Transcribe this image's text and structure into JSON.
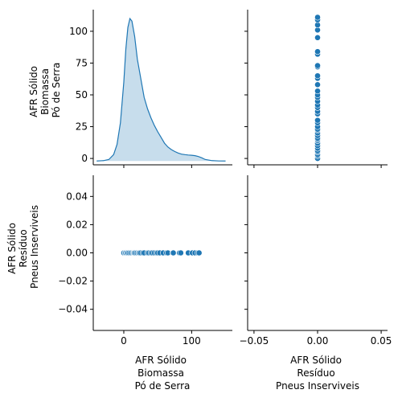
{
  "chart_data": {
    "type": "pairplot",
    "variables": [
      "AFR Sólido\nBiomassa\nPó de Serra",
      "AFR Sólido\nResíduo\nPneus Inserviveis"
    ],
    "var_labels": [
      [
        "AFR Sólido",
        "Biomassa",
        "Pó de Serra"
      ],
      [
        "AFR Sólido",
        "Resíduo",
        "Pneus Inserviveis"
      ]
    ],
    "color": "#1f77b4",
    "kde_fill_color": "#1f77b4",
    "biomassa_values": [
      0,
      2,
      3,
      5,
      6,
      8,
      10,
      12,
      14,
      15,
      16,
      18,
      20,
      22,
      23,
      25,
      28,
      30,
      35,
      37,
      40,
      42,
      45,
      48,
      50,
      53,
      58,
      63,
      65,
      72,
      73,
      82,
      84,
      95,
      101,
      105,
      109,
      111
    ],
    "pneus_values_constant": 0,
    "axes": {
      "biomassa": {
        "ticks": [
          0,
          25,
          50,
          75,
          100
        ],
        "tick_labels": [
          "0",
          "25",
          "50",
          "75",
          "100"
        ],
        "lim": [
          -5,
          117
        ]
      },
      "biomassa_x": {
        "ticks": [
          0,
          100
        ],
        "tick_labels": [
          "0",
          "100"
        ],
        "lim": [
          -45,
          160
        ]
      },
      "pneus": {
        "ticks": [
          -0.04,
          -0.02,
          0.0,
          0.02,
          0.04
        ],
        "tick_labels": [
          "−0.04",
          "−0.02",
          "0.00",
          "0.02",
          "0.04"
        ],
        "lim": [
          -0.055,
          0.055
        ]
      },
      "pneus_x": {
        "ticks": [
          -0.05,
          0.0,
          0.05
        ],
        "tick_labels": [
          "−0.05",
          "0.00",
          "0.05"
        ],
        "lim": [
          -0.055,
          0.055
        ]
      }
    },
    "kde_curve": {
      "x": [
        -40,
        -30,
        -22,
        -15,
        -10,
        -5,
        0,
        3,
        6,
        9,
        12,
        16,
        20,
        25,
        30,
        35,
        40,
        45,
        50,
        55,
        60,
        65,
        70,
        75,
        80,
        85,
        90,
        95,
        100,
        105,
        110,
        115,
        120,
        130,
        140,
        150
      ],
      "density": [
        0,
        0.3,
        1.2,
        5,
        13,
        30,
        62,
        88,
        105,
        112,
        110,
        98,
        80,
        65,
        50,
        41,
        34,
        28,
        23,
        18.5,
        14,
        11,
        9,
        7.5,
        6.3,
        5.4,
        5,
        4.7,
        4.5,
        4.2,
        3.5,
        2.5,
        1.2,
        0.3,
        0.05,
        0
      ],
      "density_max_maps_to": 112
    },
    "grid": false,
    "legend": "none"
  }
}
